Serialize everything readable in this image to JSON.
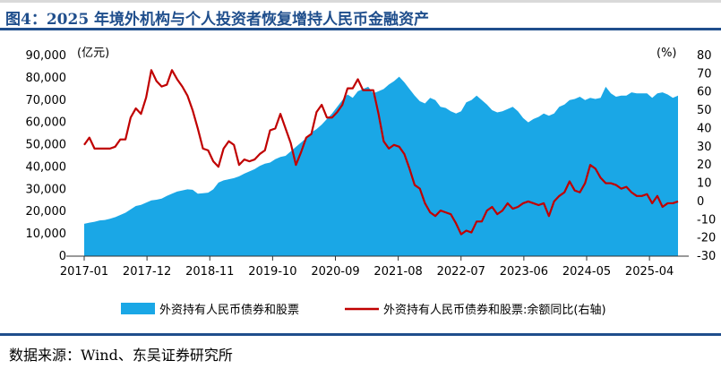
{
  "title": "图4：2025 年境外机构与个人投资者恢复增持人民币金融资产",
  "source": "数据来源：Wind、东吴证券研究所",
  "chart_data": {
    "type": "area",
    "left_unit": "(亿元)",
    "right_unit": "(%)",
    "x_ticks": [
      "2017-01",
      "2017-12",
      "2018-11",
      "2019-10",
      "2020-09",
      "2021-08",
      "2022-07",
      "2023-06",
      "2024-05",
      "2025-04"
    ],
    "left_axis": {
      "ylim": [
        0,
        90000
      ],
      "ticks": [
        "0",
        "10,000",
        "20,000",
        "30,000",
        "40,000",
        "50,000",
        "60,000",
        "70,000",
        "80,000",
        "90,000"
      ]
    },
    "right_axis": {
      "ylim": [
        -30,
        80
      ],
      "ticks": [
        "-30",
        "-20",
        "-10",
        "0",
        "10",
        "20",
        "30",
        "40",
        "50",
        "60",
        "70",
        "80"
      ]
    },
    "x_period": {
      "start": "2017-01",
      "end": "2025-09"
    },
    "series": [
      {
        "name": "外资持有人民币债券和股票",
        "axis": "left",
        "color": "#1aa7e6",
        "values": [
          14500,
          15000,
          15400,
          16000,
          16200,
          16800,
          17500,
          18500,
          19500,
          21000,
          22500,
          23000,
          24000,
          25000,
          25300,
          25800,
          27000,
          28000,
          29000,
          29500,
          30000,
          29800,
          28000,
          28200,
          28500,
          30000,
          33000,
          34000,
          34500,
          35000,
          35800,
          37000,
          38000,
          39000,
          40500,
          41500,
          42000,
          43500,
          44500,
          45000,
          47000,
          49000,
          51000,
          53000,
          55500,
          57000,
          59000,
          61500,
          64000,
          67000,
          70000,
          72500,
          71000,
          74000,
          75000,
          76000,
          73000,
          74000,
          75000,
          77000,
          78500,
          80500,
          78000,
          75000,
          72000,
          69500,
          68500,
          71000,
          70000,
          67000,
          66500,
          65000,
          64000,
          65000,
          69000,
          70000,
          72000,
          70000,
          68000,
          65500,
          64500,
          65000,
          66000,
          67000,
          65000,
          62000,
          60000,
          61500,
          62500,
          64000,
          63000,
          64000,
          67000,
          68000,
          70000,
          70500,
          71500,
          70000,
          71000,
          70500,
          71000,
          76000,
          73000,
          71500,
          72000,
          72000,
          73500,
          73000,
          73000,
          73000,
          71000,
          73000,
          73500,
          72500,
          71000,
          72000
        ]
      },
      {
        "name": "外资持有人民币债券和股票:余额同比(右轴)",
        "axis": "right",
        "color": "#c00000",
        "values": [
          31,
          35,
          29,
          29,
          29,
          29,
          30,
          34,
          34,
          46,
          51,
          48,
          57,
          72,
          66,
          63,
          64,
          72,
          67,
          63,
          58,
          50,
          40,
          29,
          28,
          22,
          19,
          29,
          33,
          31,
          20,
          23,
          22,
          23,
          26,
          28,
          39,
          40,
          48,
          40,
          32,
          20,
          27,
          35,
          37,
          49,
          53,
          46,
          46,
          49,
          53,
          62,
          62,
          67,
          61,
          61,
          61,
          48,
          33,
          29,
          31,
          30,
          26,
          18,
          9,
          7,
          -1,
          -6,
          -8,
          -5,
          -6,
          -7,
          -12,
          -18,
          -16,
          -17,
          -11,
          -11,
          -5,
          -3,
          -7,
          -5,
          -1,
          -4,
          -3,
          -1,
          0,
          -1,
          -2,
          -1,
          -8,
          0,
          3,
          5,
          11,
          6,
          5,
          10,
          20,
          18,
          13,
          10,
          10,
          9,
          7,
          8,
          5,
          3,
          3,
          4,
          -1,
          3,
          -3,
          -1,
          -1,
          0
        ]
      }
    ],
    "grid": false,
    "legend_position": "bottom"
  }
}
